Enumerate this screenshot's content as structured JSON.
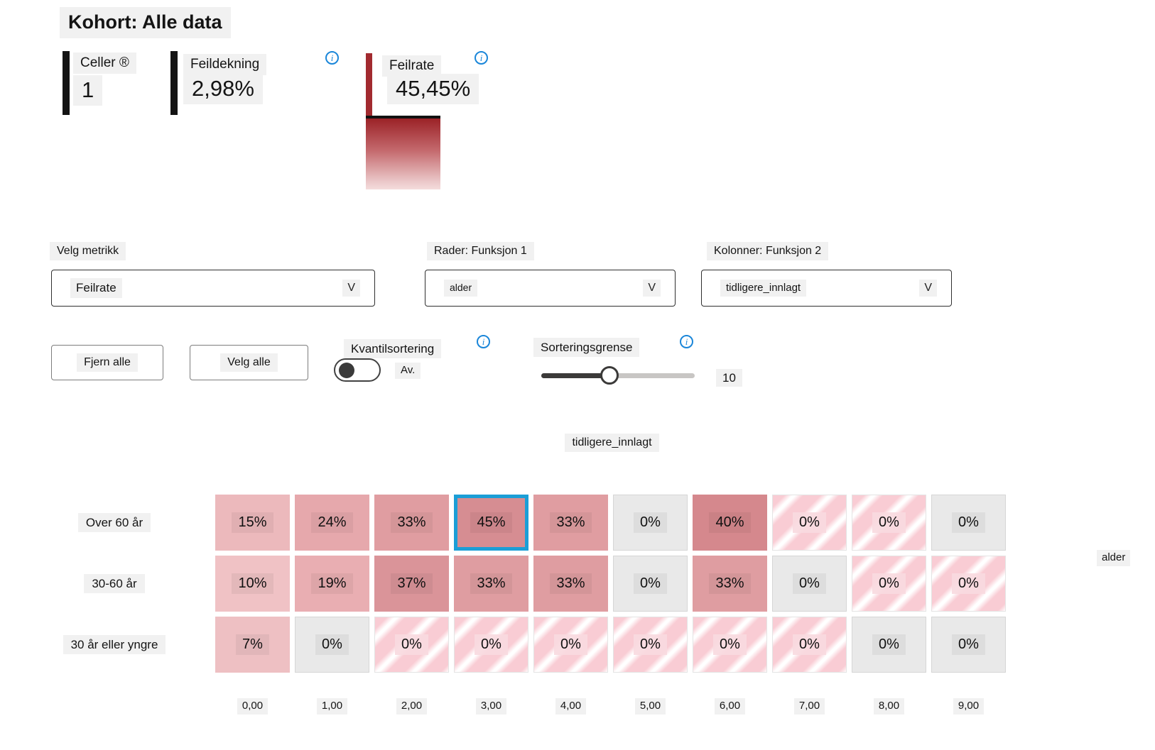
{
  "header": {
    "title": "Kohort: Alle data"
  },
  "icons": {
    "info": "i",
    "chevron": "V"
  },
  "metrics": {
    "cells": {
      "label": "Celler ®",
      "value": "1"
    },
    "coverage": {
      "label": "Feildekning",
      "value": "2,98%"
    },
    "error_rate": {
      "label": "Feilrate",
      "value": "45,45%"
    }
  },
  "controls": {
    "metric": {
      "label": "Velg metrikk",
      "value": "Feilrate"
    },
    "rows": {
      "label": "Rader: Funksjon 1",
      "value": "alder"
    },
    "columns": {
      "label": "Kolonner: Funksjon 2",
      "value": "tidligere_innlagt"
    },
    "clear_all": "Fjern alle",
    "select_all": "Velg alle",
    "quantile": {
      "label": "Kvantilsortering",
      "state": "Av."
    },
    "sort": {
      "label": "Sorteringsgrense",
      "value": "10"
    }
  },
  "chart_data": {
    "type": "heatmap",
    "title": "tidligere_innlagt",
    "row_axis_label": "alder",
    "rows": [
      "Over 60 år",
      "30-60 år",
      "30 år eller yngre"
    ],
    "columns": [
      "0,00",
      "1,00",
      "2,00",
      "3,00",
      "4,00",
      "5,00",
      "6,00",
      "7,00",
      "8,00",
      "9,00"
    ],
    "selected": {
      "row": 0,
      "col": 3
    },
    "colors": {
      "selected_border": "#1b9ed6",
      "empty": "#e9e9e9",
      "stripe_pink": "#f9ccd4"
    },
    "cells": [
      [
        {
          "label": "15%",
          "type": "shade",
          "color": "#ecb9bc"
        },
        {
          "label": "24%",
          "type": "shade",
          "color": "#e6a8ac"
        },
        {
          "label": "33%",
          "type": "shade",
          "color": "#e09da1"
        },
        {
          "label": "45%",
          "type": "shade",
          "color": "#d68d92"
        },
        {
          "label": "33%",
          "type": "shade",
          "color": "#e09da1"
        },
        {
          "label": "0%",
          "type": "empty"
        },
        {
          "label": "40%",
          "type": "shade",
          "color": "#d5888d"
        },
        {
          "label": "0%",
          "type": "striped"
        },
        {
          "label": "0%",
          "type": "striped"
        },
        {
          "label": "0%",
          "type": "empty"
        }
      ],
      [
        {
          "label": "10%",
          "type": "shade",
          "color": "#f0c2c5"
        },
        {
          "label": "19%",
          "type": "shade",
          "color": "#e9aeb2"
        },
        {
          "label": "37%",
          "type": "shade",
          "color": "#da9499"
        },
        {
          "label": "33%",
          "type": "shade",
          "color": "#df9da1"
        },
        {
          "label": "33%",
          "type": "shade",
          "color": "#df9da1"
        },
        {
          "label": "0%",
          "type": "empty"
        },
        {
          "label": "33%",
          "type": "shade",
          "color": "#df9da1"
        },
        {
          "label": "0%",
          "type": "empty"
        },
        {
          "label": "0%",
          "type": "striped"
        },
        {
          "label": "0%",
          "type": "striped"
        }
      ],
      [
        {
          "label": "7%",
          "type": "shade",
          "color": "#eec0c3"
        },
        {
          "label": "0%",
          "type": "empty"
        },
        {
          "label": "0%",
          "type": "striped"
        },
        {
          "label": "0%",
          "type": "striped"
        },
        {
          "label": "0%",
          "type": "striped"
        },
        {
          "label": "0%",
          "type": "striped"
        },
        {
          "label": "0%",
          "type": "striped"
        },
        {
          "label": "0%",
          "type": "striped"
        },
        {
          "label": "0%",
          "type": "empty"
        },
        {
          "label": "0%",
          "type": "empty"
        }
      ]
    ]
  }
}
